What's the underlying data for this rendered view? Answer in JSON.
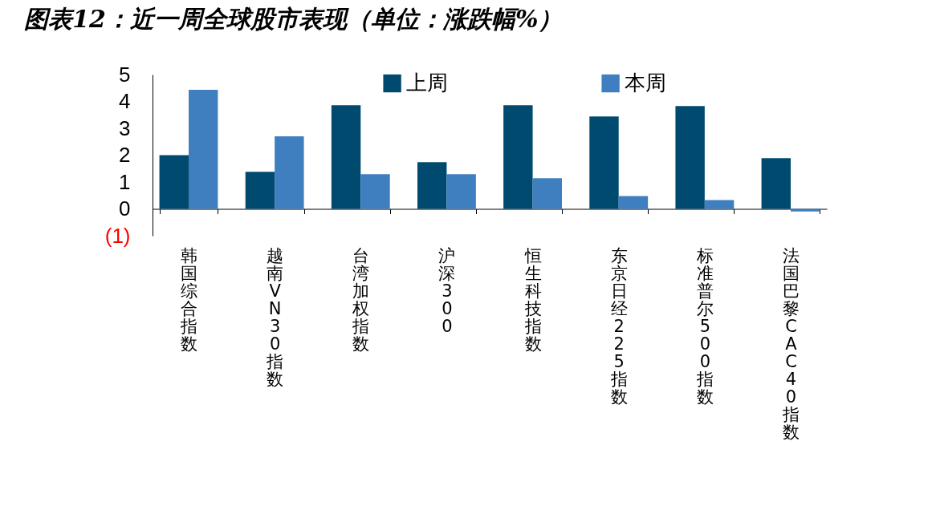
{
  "chart_data": {
    "type": "bar",
    "title": "图表12：近一周全球股市表现（单位：涨跌幅%）",
    "categories": [
      "韩国综合指数",
      "越南VN30 指数",
      "台湾加权指数",
      "沪深300",
      "恒生科技指数",
      "东京日经225 指数",
      "标准普尔500 指数",
      "法国巴黎CAC40 指数"
    ],
    "series": [
      {
        "name": "上周",
        "color": "#004a70",
        "values": [
          2.0,
          1.38,
          3.86,
          1.74,
          3.86,
          3.44,
          3.83,
          1.89
        ]
      },
      {
        "name": "本周",
        "color": "#3f7fbf",
        "values": [
          4.43,
          2.7,
          1.29,
          1.29,
          1.14,
          0.48,
          0.33,
          -0.1
        ]
      }
    ],
    "ylim": [
      -1,
      5
    ],
    "yticks": [
      {
        "value": -1,
        "label": "(1)"
      },
      0,
      1,
      2,
      3,
      4,
      5
    ],
    "grid": false,
    "legend": "top"
  }
}
